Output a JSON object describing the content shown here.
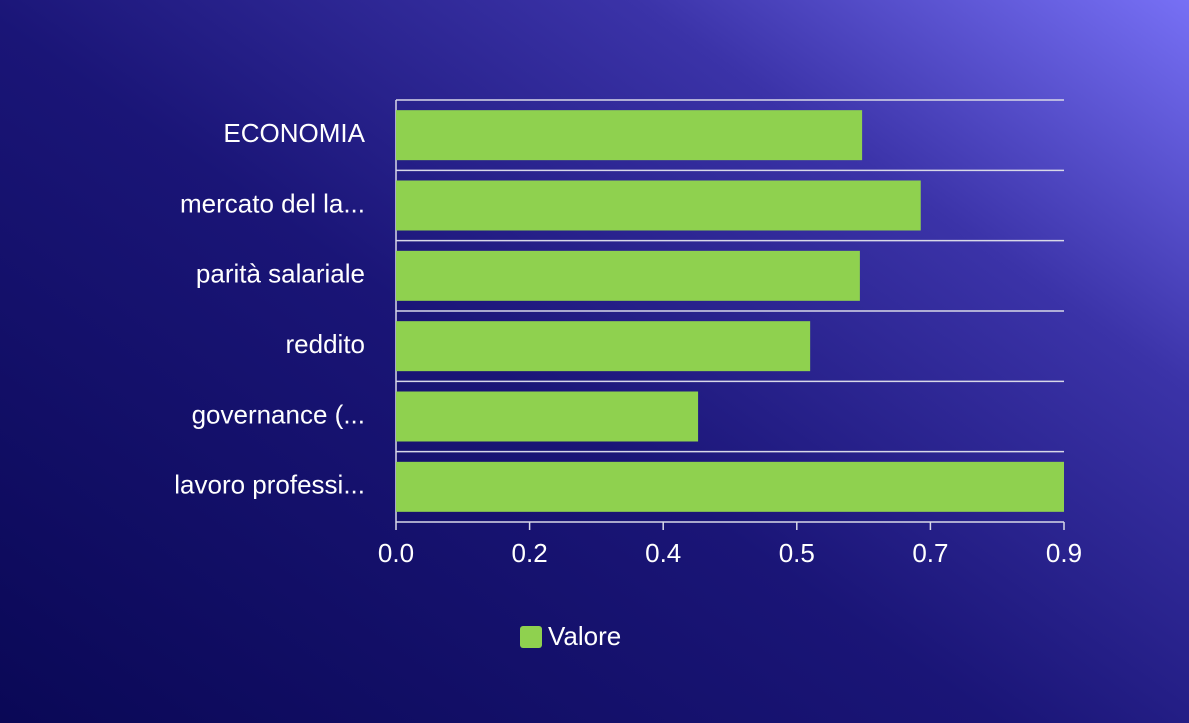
{
  "chart_data": {
    "type": "bar",
    "orientation": "horizontal",
    "categories": [
      "ECONOMIA",
      "mercato del la...",
      "parità salariale",
      "reddito",
      "governance (...",
      "lavoro professi..."
    ],
    "series": [
      {
        "name": "Valore",
        "color": "#8fd14f",
        "values": [
          0.628,
          0.707,
          0.625,
          0.558,
          0.407,
          0.9
        ]
      }
    ],
    "xlim": [
      0,
      0.9
    ],
    "xticks": [
      {
        "value": 0,
        "label": "0.0"
      },
      {
        "value": 0.18,
        "label": "0.2"
      },
      {
        "value": 0.36,
        "label": "0.4"
      },
      {
        "value": 0.54,
        "label": "0.5"
      },
      {
        "value": 0.72,
        "label": "0.7"
      },
      0.9
    ],
    "legend": "bottom"
  }
}
